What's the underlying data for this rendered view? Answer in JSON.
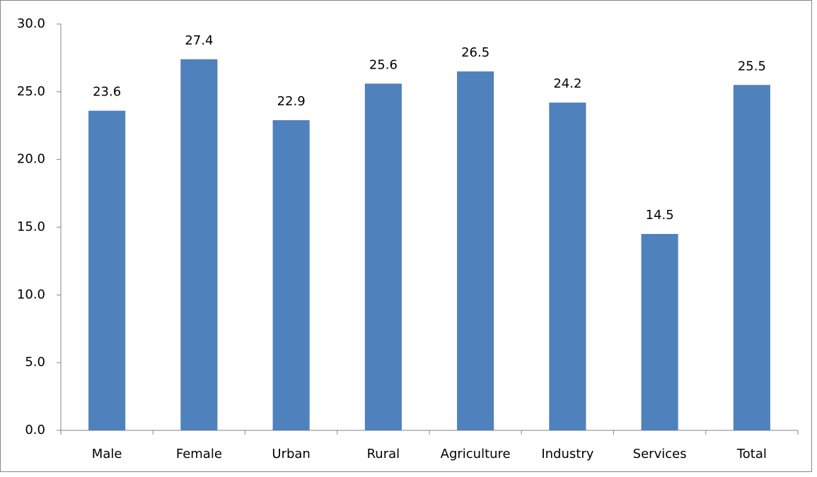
{
  "chart_data": {
    "type": "bar",
    "categories": [
      "Male",
      "Female",
      "Urban",
      "Rural",
      "Agriculture",
      "Industry",
      "Services",
      "Total"
    ],
    "values": [
      23.6,
      27.4,
      22.9,
      25.6,
      26.5,
      24.2,
      14.5,
      25.5
    ],
    "color": "#4f81bd",
    "ylim": [
      0,
      30
    ],
    "yticks": [
      {
        "value": 0,
        "label": "0.0"
      },
      {
        "value": 5,
        "label": "5.0"
      },
      {
        "value": 10,
        "label": "10.0"
      },
      {
        "value": 15,
        "label": "15.0"
      },
      {
        "value": 20,
        "label": "20.0"
      },
      {
        "value": 25,
        "label": "25.0"
      },
      {
        "value": 30,
        "label": "30.0"
      }
    ],
    "grid": false
  }
}
